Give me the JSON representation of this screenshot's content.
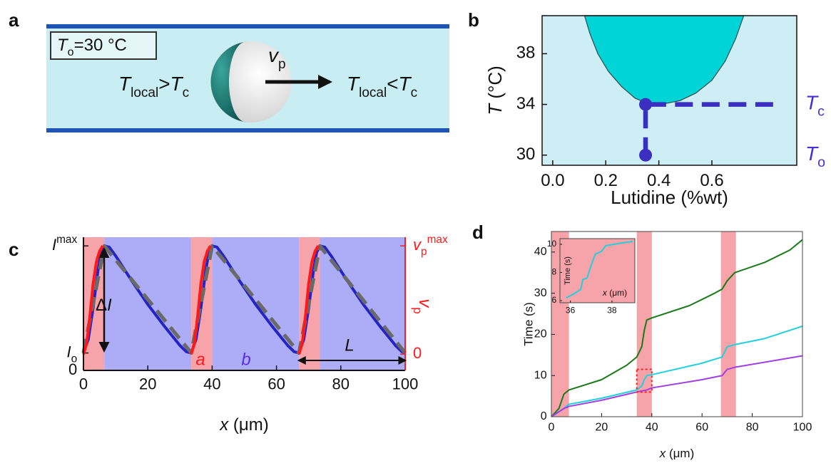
{
  "panel_labels": [
    "a",
    "b",
    "c",
    "d"
  ],
  "diagram": {
    "temperature_box": [
      "T",
      "o",
      "=30 °C"
    ],
    "left_label": [
      "T",
      "local",
      ">",
      "T",
      "c"
    ],
    "velocity_label": [
      "v",
      "p"
    ],
    "right_label": [
      "T",
      "local",
      "<",
      "T",
      "c"
    ]
  },
  "chart_data": [
    {
      "type": "phase_diagram",
      "xlabel": "Lutidine (%wt)",
      "ylabel": [
        "T",
        " (°C)"
      ],
      "xlim": [
        -0.04,
        0.92
      ],
      "ylim": [
        29.2,
        41
      ],
      "xticks": [
        {
          "value": 0,
          "label": "0.0"
        },
        {
          "value": 0.2,
          "label": "0.2"
        },
        {
          "value": 0.4,
          "label": "0.4"
        },
        {
          "value": 0.6,
          "label": "0.6"
        }
      ],
      "yticks": [
        30,
        34,
        38
      ],
      "background": "#cdeef4",
      "coexistence": {
        "color": "#00d4d6",
        "x": [
          0.12,
          0.14,
          0.17,
          0.21,
          0.26,
          0.31,
          0.36,
          0.42,
          0.48,
          0.54,
          0.6,
          0.65,
          0.69,
          0.72
        ],
        "y": [
          41,
          39.6,
          38,
          36.6,
          35.4,
          34.5,
          34.05,
          34.05,
          34.3,
          34.9,
          35.9,
          37.4,
          39.2,
          41
        ]
      },
      "series": [
        {
          "style": "dashed",
          "color": "#3a2fc0",
          "x": [
            0.35,
            0.35,
            0.85
          ],
          "values": [
            30,
            34,
            34
          ]
        },
        {
          "style": "markers",
          "color": "#3a2fc0",
          "x": [
            0.35,
            0.35
          ],
          "values": [
            30,
            34
          ]
        }
      ],
      "level_labels": [
        {
          "value": 34,
          "label": [
            "T",
            "c"
          ]
        },
        {
          "value": 30,
          "label": [
            "T",
            "o"
          ]
        }
      ],
      "level_color": "#4a2fd0"
    },
    {
      "type": "line",
      "xlabel": [
        "x",
        " (μm)"
      ],
      "xlim": [
        0,
        100
      ],
      "xticks": [
        0,
        20,
        40,
        60,
        80,
        100
      ],
      "ylim": [
        0,
        1.07
      ],
      "yticks": [
        0,
        {
          "value": 0.14,
          "label": [
            "I",
            "o"
          ]
        },
        {
          "value": 1,
          "label": [
            "I",
            "max"
          ]
        }
      ],
      "y2lim": [
        -0.15,
        1.08
      ],
      "y2label": [
        "v",
        "p"
      ],
      "y2ticks": [
        0,
        {
          "value": 1,
          "label": [
            "v",
            "p",
            "max"
          ]
        }
      ],
      "y2color": "#ff1a1a",
      "bands": [
        {
          "from": 0,
          "to": 6.5,
          "color": "#f7a3aa"
        },
        {
          "from": 6.5,
          "to": 33.5,
          "color": "#adadf7"
        },
        {
          "from": 33.5,
          "to": 40,
          "color": "#f7a3aa"
        },
        {
          "from": 40,
          "to": 67,
          "color": "#adadf7"
        },
        {
          "from": 67,
          "to": 73.5,
          "color": "#f7a3aa"
        },
        {
          "from": 73.5,
          "to": 100,
          "color": "#adadf7"
        }
      ],
      "series": [
        {
          "style": "solid",
          "color": "#2323c8",
          "x": [
            0,
            1.5,
            3,
            4.5,
            5.5,
            6.5,
            8,
            10,
            15,
            20,
            25,
            30,
            32,
            33.5,
            35,
            36.5,
            38,
            39,
            40,
            41.5,
            43.5,
            48.5,
            53.5,
            58.5,
            63.5,
            65.5,
            67,
            68.5,
            70,
            71.5,
            72.5,
            73.5,
            75,
            77,
            82,
            87,
            92,
            97,
            99,
            100
          ],
          "values": [
            0.14,
            0.25,
            0.5,
            0.8,
            0.95,
            1,
            0.99,
            0.92,
            0.72,
            0.53,
            0.36,
            0.2,
            0.15,
            0.14,
            0.25,
            0.5,
            0.8,
            0.95,
            1,
            0.99,
            0.92,
            0.72,
            0.53,
            0.36,
            0.2,
            0.15,
            0.14,
            0.25,
            0.5,
            0.8,
            0.95,
            1,
            0.99,
            0.92,
            0.72,
            0.53,
            0.36,
            0.2,
            0.15,
            0.14
          ]
        },
        {
          "style": "dashed",
          "color": "#6a6a6a",
          "x": [
            0,
            6.5,
            33.5,
            40,
            67,
            73.5,
            100
          ],
          "values": [
            0.14,
            1,
            0.14,
            1,
            0.14,
            1,
            0.14
          ]
        },
        {
          "style": "solid",
          "color": "#ff1a1a",
          "axis": "y2",
          "x": [
            0,
            1,
            2,
            3,
            4,
            5,
            6,
            null,
            33.5,
            34.5,
            35.5,
            36.5,
            37.5,
            38.5,
            39.5,
            null,
            67,
            68,
            69,
            70,
            71,
            72,
            73
          ],
          "values": [
            0,
            0.1,
            0.35,
            0.65,
            0.85,
            0.95,
            1,
            null,
            0,
            0.1,
            0.35,
            0.65,
            0.85,
            0.95,
            1,
            null,
            0,
            0.1,
            0.35,
            0.65,
            0.85,
            0.95,
            1
          ]
        }
      ],
      "delta_label": [
        "Δ",
        "I"
      ],
      "region_labels": [
        {
          "text": "a",
          "color": "#ff1a1a"
        },
        {
          "text": "b",
          "color": "#5a2fe0"
        }
      ],
      "period_label": "L"
    },
    {
      "type": "line",
      "xlabel": [
        "x",
        " (μm)"
      ],
      "ylabel": "Time (s)",
      "xlim": [
        0,
        100
      ],
      "ylim": [
        0,
        45
      ],
      "xticks": [
        0,
        20,
        40,
        60,
        80,
        100
      ],
      "yticks": [
        0,
        10,
        20,
        30,
        40
      ],
      "bands": [
        {
          "from": 0,
          "to": 7,
          "color": "#f7a3aa"
        },
        {
          "from": 34,
          "to": 40,
          "color": "#f7a3aa"
        },
        {
          "from": 67.5,
          "to": 73.5,
          "color": "#f7a3aa"
        }
      ],
      "series": [
        {
          "style": "solid",
          "color": "#1a7a1a",
          "x": [
            0,
            3,
            5,
            7,
            20,
            30,
            34,
            36,
            37,
            38,
            40,
            55,
            65,
            68,
            70,
            73,
            85,
            95,
            100
          ],
          "values": [
            0,
            2,
            5.5,
            6.5,
            9,
            12.5,
            14.5,
            17,
            21,
            23.5,
            24,
            27,
            30,
            31,
            33,
            35,
            37.5,
            40.5,
            43
          ]
        },
        {
          "style": "solid",
          "color": "#22d0dc",
          "x": [
            0,
            5,
            7,
            20,
            34,
            36,
            37,
            38,
            40,
            60,
            68,
            70,
            73,
            85,
            100
          ],
          "values": [
            0,
            2,
            3,
            4.5,
            6.5,
            7.5,
            9,
            10,
            10.2,
            13,
            14.5,
            17,
            17.5,
            19,
            22
          ]
        },
        {
          "style": "solid",
          "color": "#a040e0",
          "x": [
            0,
            5,
            7,
            20,
            34,
            38,
            40,
            60,
            68,
            70,
            73,
            100
          ],
          "values": [
            0,
            2,
            2.5,
            4,
            6,
            6.5,
            7,
            9,
            10,
            11.5,
            12,
            14.8
          ]
        }
      ],
      "highlight": {
        "xlim": [
          34,
          40
        ],
        "ylim": [
          6,
          11.5
        ],
        "color": "#ff2020"
      },
      "inset": {
        "xlabel": [
          "x",
          " (μm)"
        ],
        "ylabel": "Time (s)",
        "xlim": [
          35.5,
          39.1
        ],
        "ylim": [
          5.85,
          10.4
        ],
        "xticks": [
          36,
          38
        ],
        "yticks": [
          6,
          8,
          10
        ],
        "background": "#f7a3aa",
        "series": [
          {
            "style": "solid",
            "color": "#22d0dc",
            "x": [
              35.8,
              36.2,
              36.5,
              36.6,
              36.8,
              37,
              37.2,
              37.5,
              37.7,
              38.5,
              39
            ],
            "values": [
              6.2,
              6.5,
              6.8,
              7.5,
              7.6,
              8.5,
              9.3,
              9.5,
              9.9,
              10.1,
              10.2
            ]
          }
        ]
      }
    }
  ]
}
